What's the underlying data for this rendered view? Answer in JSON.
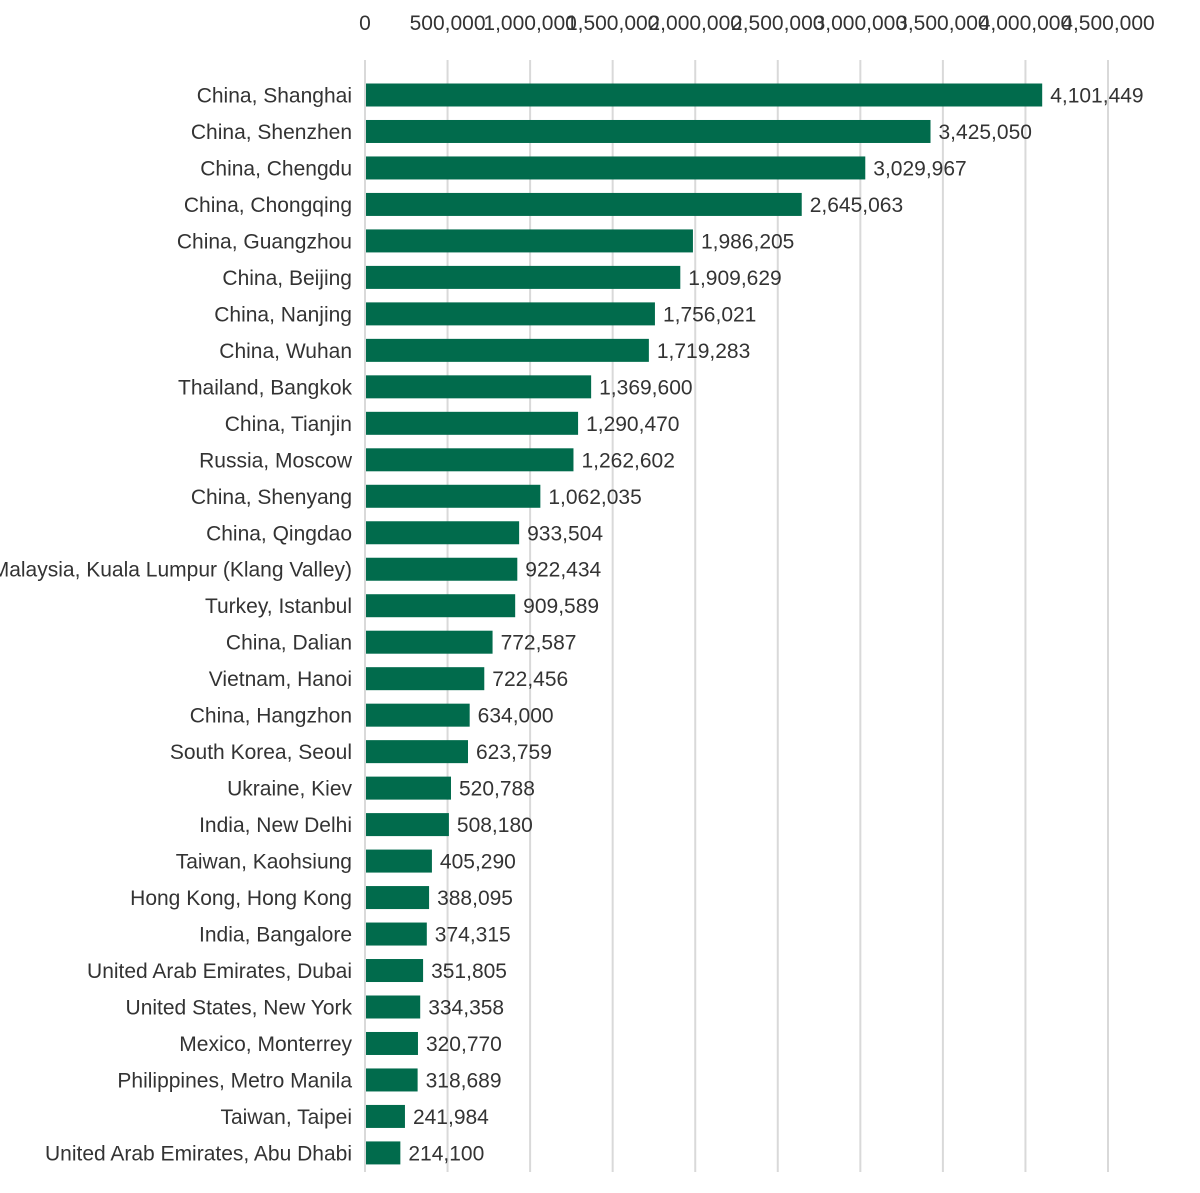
{
  "chart_data": {
    "type": "bar",
    "orientation": "horizontal",
    "categories": [
      "China, Shanghai",
      "China, Shenzhen",
      "China, Chengdu",
      "China, Chongqing",
      "China, Guangzhou",
      "China, Beijing",
      "China, Nanjing",
      "China, Wuhan",
      "Thailand, Bangkok",
      "China, Tianjin",
      "Russia, Moscow",
      "China, Shenyang",
      "China, Qingdao",
      "Malaysia, Kuala Lumpur (Klang Valley)",
      "Turkey, Istanbul",
      "China, Dalian",
      "Vietnam, Hanoi",
      "China, Hangzhon",
      "South Korea, Seoul",
      "Ukraine, Kiev",
      "India, New Delhi",
      "Taiwan, Kaohsiung",
      "Hong Kong, Hong Kong",
      "India, Bangalore",
      "United Arab Emirates, Dubai",
      "United States, New York",
      "Mexico, Monterrey",
      "Philippines, Metro Manila",
      "Taiwan, Taipei",
      "United Arab Emirates, Abu Dhabi"
    ],
    "values": [
      4101449,
      3425050,
      3029967,
      2645063,
      1986205,
      1909629,
      1756021,
      1719283,
      1369600,
      1290470,
      1262602,
      1062035,
      933504,
      922434,
      909589,
      772587,
      722456,
      634000,
      623759,
      520788,
      508180,
      405290,
      388095,
      374315,
      351805,
      334358,
      320770,
      318689,
      241984,
      214100
    ],
    "value_labels": [
      "4,101,449",
      "3,425,050",
      "3,029,967",
      "2,645,063",
      "1,986,205",
      "1,909,629",
      "1,756,021",
      "1,719,283",
      "1,369,600",
      "1,290,470",
      "1,262,602",
      "1,062,035",
      "933,504",
      "922,434",
      "909,589",
      "772,587",
      "722,456",
      "634,000",
      "623,759",
      "520,788",
      "508,180",
      "405,290",
      "388,095",
      "374,315",
      "351,805",
      "334,358",
      "320,770",
      "318,689",
      "241,984",
      "214,100"
    ],
    "x_ticks": [
      0,
      500000,
      1000000,
      1500000,
      2000000,
      2500000,
      3000000,
      3500000,
      4000000,
      4500000
    ],
    "x_tick_labels": [
      "0",
      "500,000",
      "1,000,000",
      "1,500,000",
      "2,000,000",
      "2,500,000",
      "3,000,000",
      "3,500,000",
      "4,000,000",
      "4,500,000"
    ],
    "xlim": [
      0,
      4500000
    ],
    "x_axis_position": "top",
    "grid": true,
    "bar_color": "#016b4c",
    "grid_color": "#d9d9d9"
  }
}
